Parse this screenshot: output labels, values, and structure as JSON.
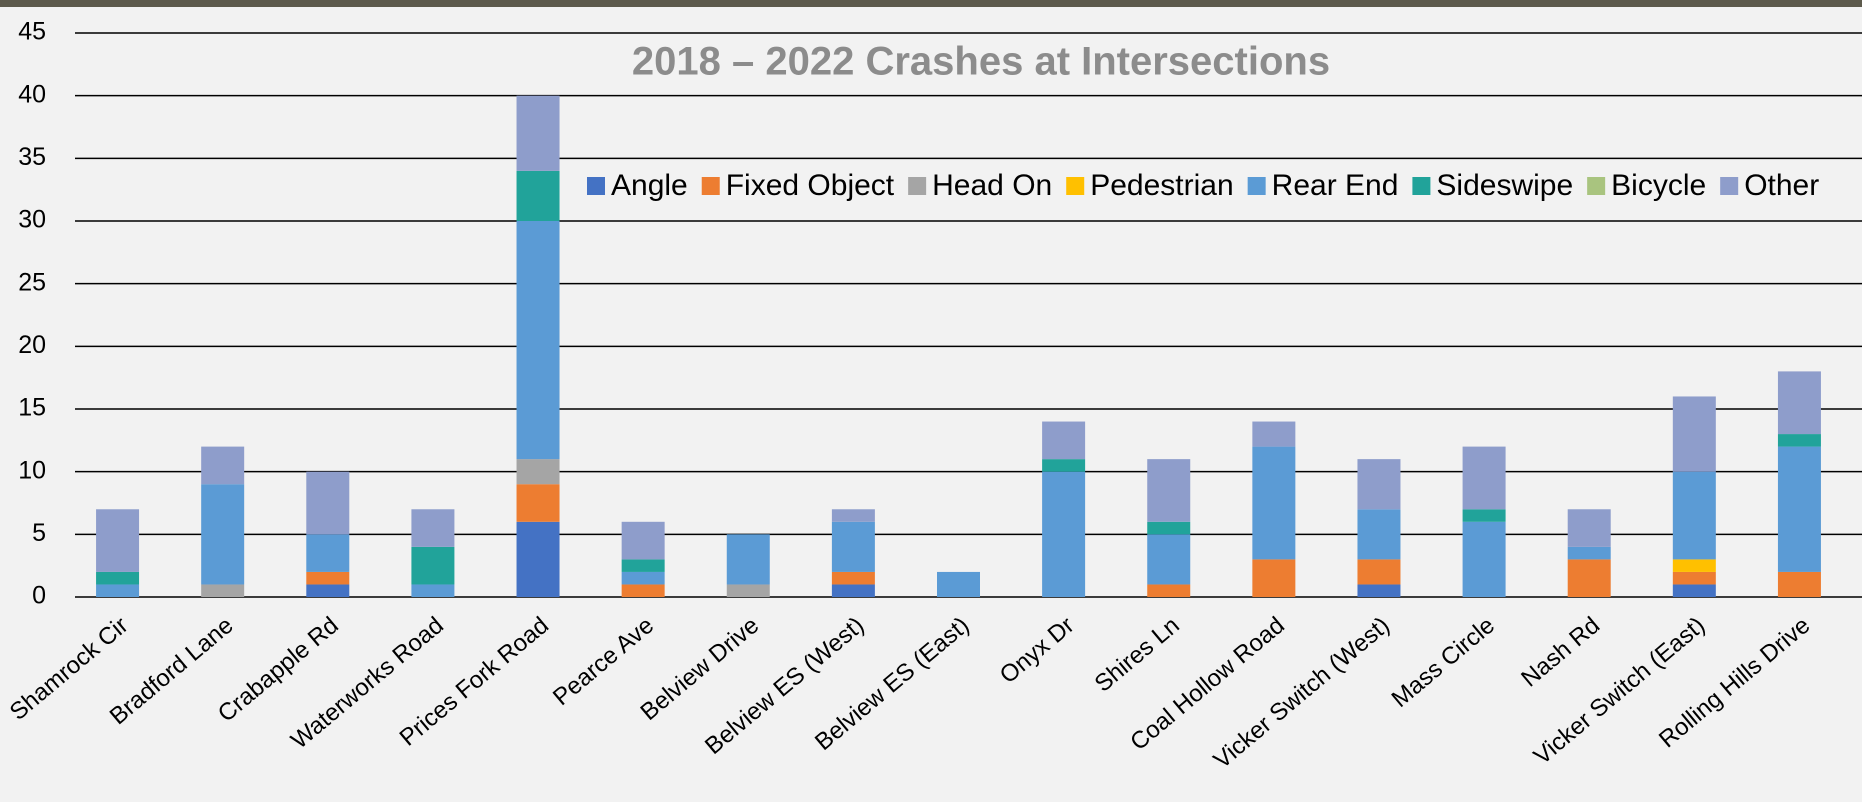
{
  "chart_data": {
    "type": "stacked-bar",
    "title": "2018 – 2022 Crashes at Intersections",
    "categories": [
      "Shamrock Cir",
      "Bradford Lane",
      "Crabapple Rd",
      "Waterworks Road",
      "Prices Fork Road",
      "Pearce Ave",
      "Belview Drive",
      "Belview ES (West)",
      "Belview ES (East)",
      "Onyx Dr",
      "Shires Ln",
      "Coal Hollow Road",
      "Vicker Switch (West)",
      "Mass Circle",
      "Nash Rd",
      "Vicker Switch (East)",
      "Rolling Hills Drive"
    ],
    "series": [
      {
        "name": "Angle",
        "color": "#4472c4",
        "values": [
          0,
          0,
          1,
          0,
          6,
          0,
          0,
          1,
          0,
          0,
          0,
          0,
          1,
          0,
          0,
          1,
          0
        ]
      },
      {
        "name": "Fixed Object",
        "color": "#ed7d31",
        "values": [
          0,
          0,
          1,
          0,
          3,
          1,
          0,
          1,
          0,
          0,
          1,
          3,
          2,
          0,
          3,
          1,
          2
        ]
      },
      {
        "name": "Head On",
        "color": "#a5a5a5",
        "values": [
          0,
          1,
          0,
          0,
          2,
          0,
          1,
          0,
          0,
          0,
          0,
          0,
          0,
          0,
          0,
          0,
          0
        ]
      },
      {
        "name": "Pedestrian",
        "color": "#ffc000",
        "values": [
          0,
          0,
          0,
          0,
          0,
          0,
          0,
          0,
          0,
          0,
          0,
          0,
          0,
          0,
          0,
          1,
          0
        ]
      },
      {
        "name": "Rear End",
        "color": "#5b9bd5",
        "values": [
          1,
          8,
          3,
          1,
          19,
          1,
          4,
          4,
          2,
          10,
          4,
          9,
          4,
          6,
          1,
          7,
          10
        ]
      },
      {
        "name": "Sideswipe",
        "color": "#21a39a",
        "values": [
          1,
          0,
          0,
          3,
          4,
          1,
          0,
          0,
          0,
          1,
          1,
          0,
          0,
          1,
          0,
          0,
          1
        ]
      },
      {
        "name": "Bicycle",
        "color": "#a9c47f",
        "values": [
          0,
          0,
          0,
          0,
          0,
          0,
          0,
          0,
          0,
          0,
          0,
          0,
          0,
          0,
          0,
          0,
          0
        ]
      },
      {
        "name": "Other",
        "color": "#8e9dcb",
        "values": [
          5,
          3,
          5,
          3,
          6,
          3,
          0,
          1,
          0,
          3,
          5,
          2,
          4,
          5,
          3,
          6,
          5
        ]
      }
    ],
    "ylim": [
      0,
      45
    ],
    "yticks": [
      0,
      5,
      10,
      15,
      20,
      25,
      30,
      35,
      40,
      45
    ],
    "grid": true
  }
}
